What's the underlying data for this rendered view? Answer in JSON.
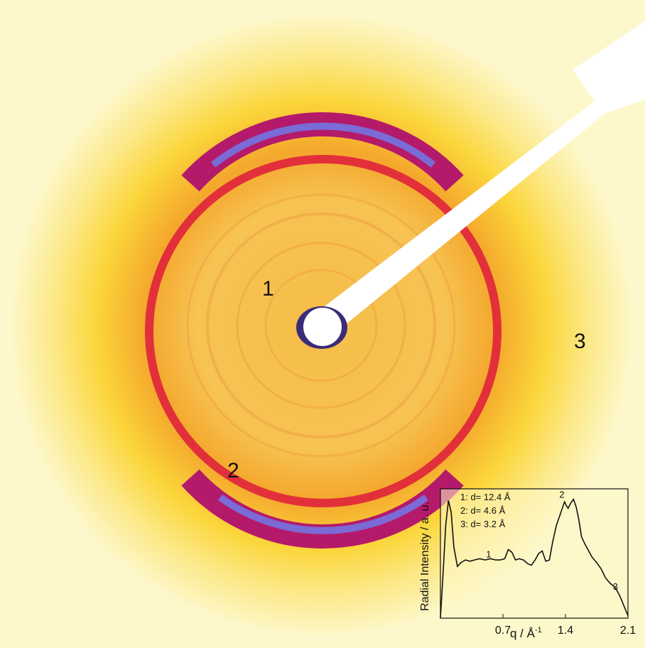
{
  "pattern": {
    "ring_labels": [
      "1",
      "2",
      "3"
    ],
    "colors": {
      "background_outer": "#fdf8cc",
      "halo_yellow": "#fce24a",
      "halo_orange": "#f7b52a",
      "center_orange": "#f6bd47",
      "ring_red": "#d8123a",
      "ring_magenta": "#b41a6a",
      "ring_blue": "#7a6bd6",
      "beamstop": "#ffffff"
    }
  },
  "chart_data": {
    "type": "line",
    "title": "",
    "xlabel": "q / Å",
    "xlabel_superscript": "-1",
    "ylabel": "Radial Intensity / a. u.",
    "xlim": [
      0.0,
      2.1
    ],
    "ylim": [
      0.0,
      1.0
    ],
    "xticks": [
      "0.7",
      "1.4",
      "2.1"
    ],
    "annotations": [
      {
        "text": "1",
        "x": 0.54,
        "y": 0.47
      },
      {
        "text": "2",
        "x": 1.36,
        "y": 0.93
      },
      {
        "text": "3",
        "x": 1.96,
        "y": 0.22
      }
    ],
    "legend_lines": [
      "1: d= 12.4 Å",
      "2: d= 4.6 Å",
      "3: d= 3.2 Å"
    ],
    "series": [
      {
        "x": [
          0.0,
          0.03,
          0.06,
          0.09,
          0.12,
          0.15,
          0.19,
          0.23,
          0.28,
          0.33,
          0.38,
          0.44,
          0.5,
          0.56,
          0.62,
          0.67,
          0.72,
          0.76,
          0.8,
          0.84,
          0.88,
          0.93,
          0.98,
          1.02,
          1.06,
          1.1,
          1.14,
          1.18,
          1.22,
          1.26,
          1.3,
          1.34,
          1.37,
          1.39,
          1.41,
          1.43,
          1.46,
          1.49,
          1.52,
          1.55,
          1.58,
          1.62,
          1.66,
          1.7,
          1.75,
          1.8,
          1.85,
          1.9,
          1.95,
          1.98,
          2.01,
          2.04,
          2.07,
          2.1
        ],
        "y": [
          0.0,
          0.35,
          0.72,
          0.91,
          0.82,
          0.55,
          0.4,
          0.43,
          0.45,
          0.44,
          0.45,
          0.46,
          0.45,
          0.46,
          0.45,
          0.45,
          0.46,
          0.53,
          0.51,
          0.45,
          0.46,
          0.45,
          0.42,
          0.41,
          0.45,
          0.5,
          0.52,
          0.44,
          0.45,
          0.6,
          0.72,
          0.8,
          0.86,
          0.9,
          0.87,
          0.85,
          0.89,
          0.92,
          0.86,
          0.76,
          0.63,
          0.57,
          0.52,
          0.47,
          0.43,
          0.38,
          0.31,
          0.27,
          0.24,
          0.21,
          0.17,
          0.12,
          0.07,
          0.02
        ]
      }
    ],
    "grid": false
  }
}
